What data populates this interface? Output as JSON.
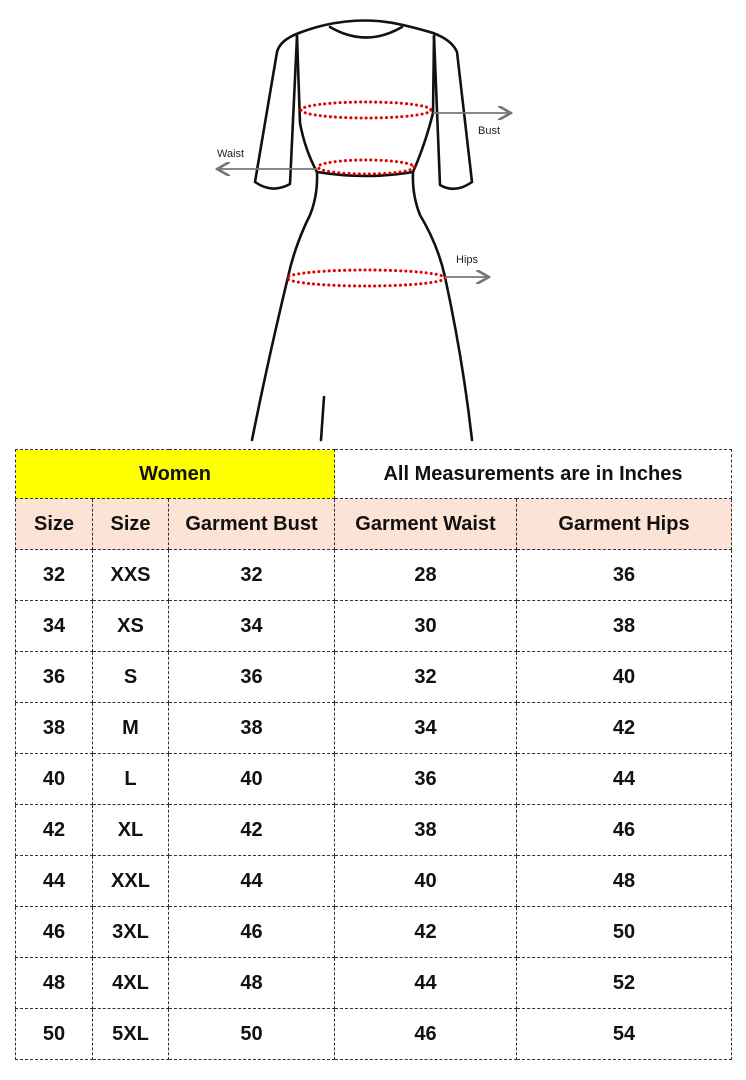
{
  "diagram": {
    "labels": {
      "bust": "Bust",
      "waist": "Waist",
      "hips": "Hips"
    },
    "colors": {
      "outline": "#111111",
      "dots": "#e00000",
      "arrows": "#777777"
    }
  },
  "table": {
    "group_label": "Women",
    "unit_note": "All Measurements are in Inches",
    "headers": [
      "Size",
      "Size",
      "Garment Bust",
      "Garment Waist",
      "Garment Hips"
    ],
    "rows": [
      [
        "32",
        "XXS",
        "32",
        "28",
        "36"
      ],
      [
        "34",
        "XS",
        "34",
        "30",
        "38"
      ],
      [
        "36",
        "S",
        "36",
        "32",
        "40"
      ],
      [
        "38",
        "M",
        "38",
        "34",
        "42"
      ],
      [
        "40",
        "L",
        "40",
        "36",
        "44"
      ],
      [
        "42",
        "XL",
        "42",
        "38",
        "46"
      ],
      [
        "44",
        "XXL",
        "44",
        "40",
        "48"
      ],
      [
        "46",
        "3XL",
        "46",
        "42",
        "50"
      ],
      [
        "48",
        "4XL",
        "48",
        "44",
        "52"
      ],
      [
        "50",
        "5XL",
        "50",
        "46",
        "54"
      ]
    ],
    "colors": {
      "group_bg": "#ffff00",
      "header_bg": "#fbe4d5"
    }
  }
}
